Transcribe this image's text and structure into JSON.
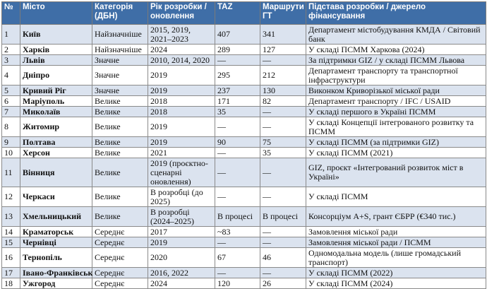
{
  "headers": [
    "№",
    "Місто",
    "Категорія (ДБН)",
    "Рік розробки / оновлення",
    "TAZ",
    "Маршрути ГТ",
    "Підстава розробки / джерело фінансування"
  ],
  "rows": [
    [
      "1",
      "Київ",
      "Найзначніше",
      "2015, 2019, 2021–2023",
      "407",
      "341",
      "Департамент містобудування КМДА / Світовий банк"
    ],
    [
      "2",
      "Харків",
      "Найзначніше",
      "2024",
      "289",
      "127",
      "У складі ПСММ Харкова (2024)"
    ],
    [
      "3",
      "Львів",
      "Значне",
      "2010, 2014, 2020",
      "—",
      "—",
      "За підтримки GIZ / у складі ПСММ Львова"
    ],
    [
      "4",
      "Дніпро",
      "Значне",
      "2019",
      "295",
      "212",
      "Департамент транспорту та транспортної інфраструктури"
    ],
    [
      "5",
      "Кривий Ріг",
      "Значне",
      "2019",
      "237",
      "130",
      "Виконком Криворізької міської ради"
    ],
    [
      "6",
      "Маріуполь",
      "Велике",
      "2018",
      "171",
      "82",
      "Департамент транспорту / IFC / USAID"
    ],
    [
      "7",
      "Миколаїв",
      "Велике",
      "2018",
      "35",
      "—",
      "У складі першого в Україні ПСММ"
    ],
    [
      "8",
      "Житомир",
      "Велике",
      "2019",
      "—",
      "—",
      "У складі Концепції інтегрованого розвитку та ПСММ"
    ],
    [
      "9",
      "Полтава",
      "Велике",
      "2019",
      "90",
      "75",
      "У складі ПСММ (за підтримки GIZ)"
    ],
    [
      "10",
      "Херсон",
      "Велике",
      "2021",
      "—",
      "35",
      "У складі ПСММ (2021)"
    ],
    [
      "11",
      "Вінниця",
      "Велике",
      "2019 (проєктно-сценарні оновлення)",
      "—",
      "—",
      "GIZ, проєкт «Інтегрований розвиток міст в Україні»"
    ],
    [
      "12",
      "Черкаси",
      "Велике",
      "В розробці (до 2025)",
      "—",
      "—",
      "У складі ПСММ"
    ],
    [
      "13",
      "Хмельницький",
      "Велике",
      "В розробці (2024–2025)",
      "В процесі",
      "В процесі",
      "Консорціум A+S, грант ЄБРР (€340 тис.)"
    ],
    [
      "14",
      "Краматорськ",
      "Середнє",
      "2017",
      "~83",
      "—",
      "Замовлення міської ради"
    ],
    [
      "15",
      "Чернівці",
      "Середнє",
      "2019",
      "—",
      "—",
      "Замовлення міської ради / ПСММ"
    ],
    [
      "16",
      "Тернопіль",
      "Середнє",
      "2020",
      "67",
      "46",
      "Одномодальна модель (лише громадський транспорт)"
    ],
    [
      "17",
      "Івано-Франківськ",
      "Середнє",
      "2016, 2022",
      "—",
      "—",
      "У складі ПСММ (2022)"
    ],
    [
      "18",
      "Ужгород",
      "Середнє",
      "2024",
      "120",
      "26",
      "У складі ПСММ (2024)"
    ]
  ]
}
